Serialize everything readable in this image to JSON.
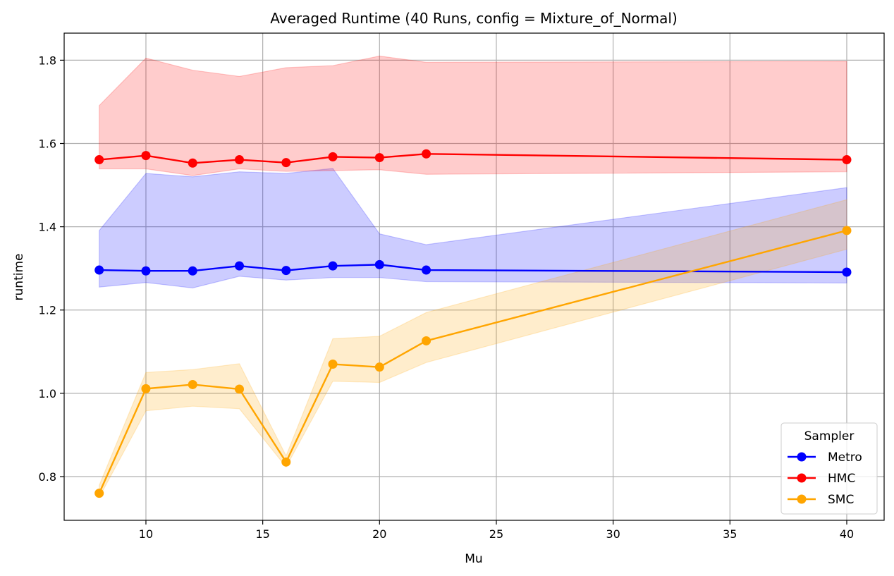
{
  "chart_data": {
    "type": "line",
    "title": "Averaged Runtime (40 Runs, config = Mixture_of_Normal)",
    "xlabel": "Mu",
    "ylabel": "runtime",
    "xlim": [
      6.5,
      41.6
    ],
    "ylim": [
      0.695,
      1.865
    ],
    "xticks": [
      10,
      15,
      20,
      25,
      30,
      35,
      40
    ],
    "yticks": [
      0.8,
      1.0,
      1.2,
      1.4,
      1.6,
      1.8
    ],
    "x": [
      8,
      10,
      12,
      14,
      16,
      18,
      20,
      22,
      40
    ],
    "grid": true,
    "legend": {
      "title": "Sampler",
      "position": "lower-right"
    },
    "series": [
      {
        "name": "Metro",
        "color": "#0000ff",
        "band_color": "#0000ff",
        "values": [
          1.296,
          1.294,
          1.294,
          1.306,
          1.295,
          1.306,
          1.309,
          1.296,
          1.291
        ],
        "lower": [
          1.255,
          1.266,
          1.253,
          1.281,
          1.272,
          1.278,
          1.278,
          1.268,
          1.265
        ],
        "upper": [
          1.391,
          1.528,
          1.52,
          1.532,
          1.528,
          1.54,
          1.383,
          1.357,
          1.494
        ]
      },
      {
        "name": "HMC",
        "color": "#ff0000",
        "band_color": "#ff0000",
        "values": [
          1.561,
          1.571,
          1.553,
          1.561,
          1.554,
          1.568,
          1.566,
          1.575,
          1.561
        ],
        "lower": [
          1.539,
          1.539,
          1.523,
          1.539,
          1.533,
          1.535,
          1.537,
          1.526,
          1.532
        ],
        "upper": [
          1.691,
          1.805,
          1.776,
          1.761,
          1.782,
          1.787,
          1.81,
          1.795,
          1.797
        ]
      },
      {
        "name": "SMC",
        "color": "#ffa500",
        "band_color": "#ffa500",
        "values": [
          0.76,
          1.011,
          1.021,
          1.01,
          0.835,
          1.07,
          1.063,
          1.126,
          1.391
        ],
        "lower": [
          0.75,
          0.958,
          0.969,
          0.963,
          0.823,
          1.029,
          1.026,
          1.074,
          1.346
        ],
        "upper": [
          0.779,
          1.05,
          1.057,
          1.071,
          0.85,
          1.131,
          1.137,
          1.194,
          1.465
        ]
      }
    ]
  }
}
